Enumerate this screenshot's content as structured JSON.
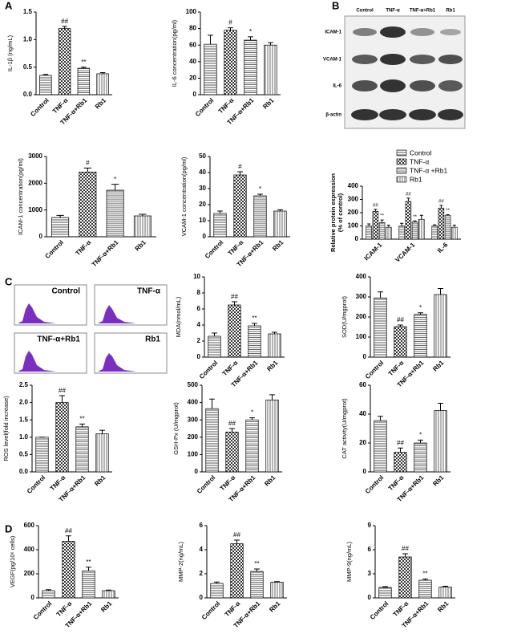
{
  "panel_labels": [
    "A",
    "B",
    "C",
    "D"
  ],
  "blot": {
    "lanes": [
      "Control",
      "TNF-α",
      "TNF-α+Rb1",
      "Rb1"
    ],
    "rows": [
      "ICAM-1",
      "VCAM-1",
      "IL-6",
      "β-actin"
    ]
  },
  "flow": {
    "labels": [
      "Control",
      "TNF-α",
      "TNF-α+Rb1",
      "Rb1"
    ]
  },
  "chart_data": [
    {
      "type": "bar",
      "ylabel": "IL-1β (ng/mL)",
      "categories": [
        "Control",
        "TNF-α",
        "TNF-α+Rb1",
        "Rb1"
      ],
      "values": [
        0.35,
        1.2,
        0.48,
        0.38
      ],
      "errors": [
        0.02,
        0.04,
        0.02,
        0.02
      ],
      "annotations": [
        null,
        "##",
        "**",
        null
      ],
      "ylim": [
        0,
        1.5
      ],
      "yticks": [
        {
          "value": 0,
          "label": "0.0"
        },
        0.5,
        {
          "value": 1,
          "label": "1.0"
        },
        1.5
      ]
    },
    {
      "type": "bar",
      "ylabel": "IL-6 concentration(pg/ml)",
      "categories": [
        "Control",
        "TNF-α",
        "TNF-α+Rb1",
        "Rb1"
      ],
      "values": [
        61,
        78,
        66,
        60
      ],
      "errors": [
        11,
        3,
        4,
        3
      ],
      "annotations": [
        null,
        "#",
        "*",
        null
      ],
      "ylim": [
        0,
        100
      ],
      "yticks": [
        0,
        20,
        40,
        60,
        80,
        100
      ]
    },
    {
      "type": "bar",
      "ylabel": "ICAM-1 concentration(pg/ml)",
      "categories": [
        "Control",
        "TNF-α",
        "TNF-α+Rb1",
        "Rb1"
      ],
      "values": [
        720,
        2420,
        1740,
        780
      ],
      "errors": [
        80,
        150,
        220,
        60
      ],
      "annotations": [
        null,
        "#",
        "*",
        null
      ],
      "ylim": [
        0,
        3000
      ],
      "yticks": [
        0,
        1000,
        2000,
        3000
      ]
    },
    {
      "type": "bar",
      "ylabel": "VCAM-1 concentration(pg/ml)",
      "categories": [
        "Control",
        "TNF-α",
        "TNF-α+Rb1",
        "Rb1"
      ],
      "values": [
        14.5,
        38.5,
        25.5,
        16
      ],
      "errors": [
        1.5,
        2,
        1,
        0.8
      ],
      "annotations": [
        null,
        "#",
        "*",
        null
      ],
      "ylim": [
        0,
        50
      ],
      "yticks": [
        0,
        10,
        20,
        30,
        40,
        50
      ]
    },
    {
      "type": "grouped_bar",
      "ylabel": [
        "Relative protein expression",
        "(% of control)"
      ],
      "categories": [
        "ICAM-1",
        "VCAM-1",
        "IL-6"
      ],
      "legend": "top-right",
      "ylim": [
        0,
        400
      ],
      "yticks": [
        0,
        100,
        200,
        300,
        400
      ],
      "series": [
        {
          "name": "Control",
          "values": [
            100,
            100,
            100
          ],
          "errors": [
            15,
            20,
            8
          ],
          "annotations": [
            null,
            null,
            null
          ]
        },
        {
          "name": "TNF-α",
          "values": [
            210,
            285,
            235
          ],
          "errors": [
            15,
            25,
            20
          ],
          "annotations": [
            "##",
            "##",
            "##"
          ]
        },
        {
          "name": "TNF-α +Rb1",
          "values": [
            125,
            130,
            180
          ],
          "errors": [
            20,
            8,
            5
          ],
          "annotations": [
            "**",
            "**",
            "**"
          ]
        },
        {
          "name": "Rb1",
          "values": [
            90,
            150,
            90
          ],
          "errors": [
            15,
            30,
            15
          ],
          "annotations": [
            null,
            null,
            null
          ]
        }
      ]
    },
    {
      "type": "bar",
      "ylabel": "MDA(nmol/mL)",
      "categories": [
        "Control",
        "TNF-α",
        "TNF-α+Rb1",
        "Rb1"
      ],
      "values": [
        2.6,
        6.5,
        3.9,
        2.9
      ],
      "errors": [
        0.4,
        0.4,
        0.3,
        0.2
      ],
      "annotations": [
        null,
        "##",
        "**",
        null
      ],
      "ylim": [
        0,
        10
      ],
      "yticks": [
        0,
        2,
        4,
        6,
        8,
        10
      ]
    },
    {
      "type": "bar",
      "ylabel": "SOD(U/mgprot)",
      "categories": [
        "Control",
        "TNF-α",
        "TNF-α+Rb1",
        "Rb1"
      ],
      "values": [
        295,
        152,
        213,
        312
      ],
      "errors": [
        30,
        8,
        8,
        30
      ],
      "annotations": [
        null,
        "##",
        "*",
        null
      ],
      "ylim": [
        0,
        400
      ],
      "yticks": [
        0,
        100,
        200,
        300,
        400
      ]
    },
    {
      "type": "bar",
      "ylabel": "ROS level(fold increase)",
      "categories": [
        "Control",
        "TNF-α",
        "TNF-α+Rb1",
        "Rb1"
      ],
      "values": [
        1.0,
        2.0,
        1.3,
        1.1
      ],
      "errors": [
        0,
        0.2,
        0.08,
        0.1
      ],
      "annotations": [
        null,
        "##",
        "**",
        null
      ],
      "ylim": [
        0,
        2.5
      ],
      "yticks": [
        {
          "value": 0,
          "label": "0.0"
        },
        0.5,
        {
          "value": 1,
          "label": "1.0"
        },
        1.5,
        {
          "value": 2,
          "label": "2.0"
        },
        2.5
      ]
    },
    {
      "type": "bar",
      "ylabel": "GSH-Px (U/mgprot)",
      "categories": [
        "Control",
        "TNF-α",
        "TNF-α+Rb1",
        "Rb1"
      ],
      "values": [
        365,
        230,
        300,
        415
      ],
      "errors": [
        55,
        20,
        12,
        30
      ],
      "annotations": [
        null,
        "##",
        "*",
        null
      ],
      "ylim": [
        0,
        500
      ],
      "yticks": [
        0,
        100,
        200,
        300,
        400,
        500
      ]
    },
    {
      "type": "bar",
      "ylabel": "CAT activity(U/mgprot)",
      "categories": [
        "Control",
        "TNF-α",
        "TNF-α+Rb1",
        "Rb1"
      ],
      "values": [
        35.5,
        13.5,
        20,
        42.5
      ],
      "errors": [
        3,
        3,
        2,
        5
      ],
      "annotations": [
        null,
        "##",
        "*",
        null
      ],
      "ylim": [
        0,
        60
      ],
      "yticks": [
        0,
        20,
        40,
        60
      ]
    },
    {
      "type": "bar",
      "ylabel": "VEGF(pg/10⁶ cells)",
      "categories": [
        "Control",
        "TNF-α",
        "TNF-α+Rb1",
        "Rb1"
      ],
      "values": [
        60,
        470,
        225,
        60
      ],
      "errors": [
        8,
        45,
        30,
        5
      ],
      "annotations": [
        null,
        "##",
        "**",
        null
      ],
      "ylim": [
        0,
        600
      ],
      "yticks": [
        0,
        200,
        400,
        600
      ]
    },
    {
      "type": "bar",
      "ylabel": "MMP-2(ng/mL)",
      "categories": [
        "Control",
        "TNF-α",
        "TNF-α+Rb1",
        "Rb1"
      ],
      "values": [
        1.2,
        4.5,
        2.2,
        1.3
      ],
      "errors": [
        0.12,
        0.3,
        0.2,
        0.05
      ],
      "annotations": [
        null,
        "##",
        "**",
        null
      ],
      "ylim": [
        0,
        6
      ],
      "yticks": [
        0,
        2,
        4,
        6
      ]
    },
    {
      "type": "bar",
      "ylabel": "MMP-9(ng/mL)",
      "categories": [
        "Control",
        "TNF-α",
        "TNF-α+Rb1",
        "Rb1"
      ],
      "values": [
        1.3,
        5.1,
        2.2,
        1.35
      ],
      "errors": [
        0.1,
        0.4,
        0.15,
        0.1
      ],
      "annotations": [
        null,
        "##",
        "**",
        null
      ],
      "ylim": [
        0,
        9
      ],
      "yticks": [
        0,
        3,
        6,
        9
      ]
    }
  ]
}
